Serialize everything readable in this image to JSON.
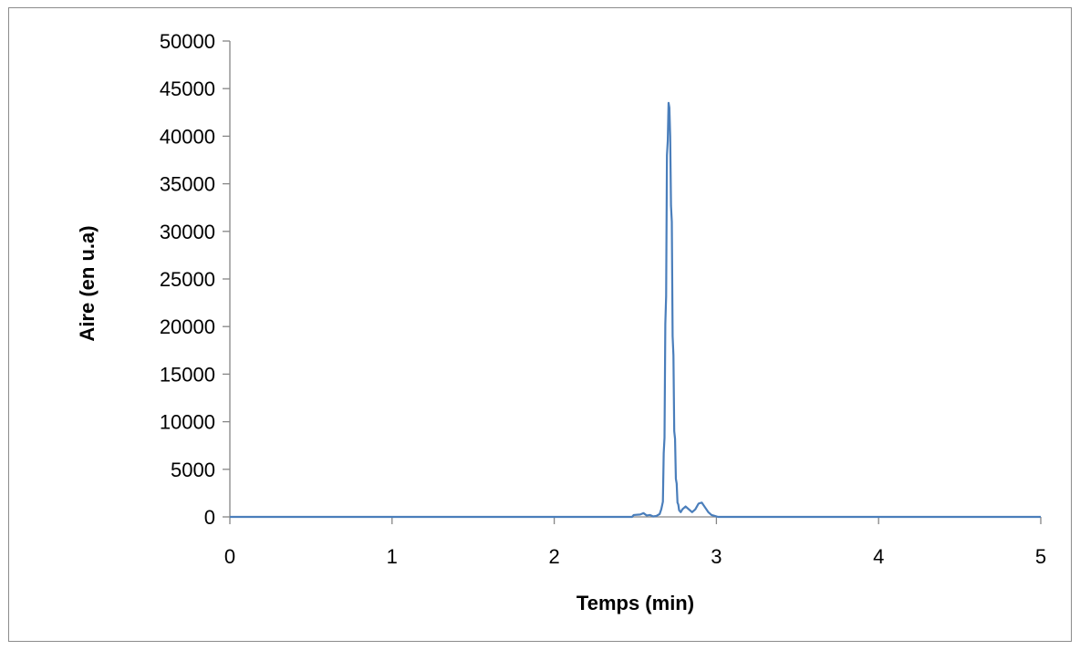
{
  "chart_data": {
    "type": "line",
    "title": "",
    "xlabel": "Temps (min)",
    "ylabel": "Aire  (en u.a)",
    "xlim": [
      0,
      5
    ],
    "ylim": [
      0,
      50000
    ],
    "x_ticks": [
      "0",
      "1",
      "2",
      "3",
      "4",
      "5"
    ],
    "y_ticks": [
      "0",
      "5000",
      "10000",
      "15000",
      "20000",
      "25000",
      "30000",
      "35000",
      "40000",
      "45000",
      "50000"
    ],
    "grid": false,
    "legend": "none",
    "series": [
      {
        "color": "#4a7ebb",
        "x": [
          0,
          2.48,
          2.49,
          2.53,
          2.55,
          2.57,
          2.59,
          2.61,
          2.63,
          2.65,
          2.66,
          2.67,
          2.675,
          2.68,
          2.685,
          2.69,
          2.695,
          2.7,
          2.705,
          2.71,
          2.715,
          2.72,
          2.725,
          2.73,
          2.735,
          2.74,
          2.745,
          2.75,
          2.755,
          2.76,
          2.765,
          2.77,
          2.78,
          2.79,
          2.81,
          2.83,
          2.85,
          2.87,
          2.89,
          2.91,
          2.93,
          2.95,
          2.97,
          2.99,
          3.01,
          3.03,
          5
        ],
        "y": [
          0,
          0,
          200,
          250,
          400,
          150,
          200,
          50,
          100,
          300,
          800,
          1600,
          6700,
          8300,
          20300,
          23200,
          38000,
          39500,
          43500,
          43000,
          40000,
          32700,
          31000,
          19000,
          17000,
          9000,
          8200,
          4000,
          3500,
          1500,
          1300,
          700,
          500,
          800,
          1100,
          800,
          500,
          800,
          1400,
          1500,
          1000,
          500,
          200,
          100,
          0,
          0,
          0
        ]
      }
    ]
  }
}
